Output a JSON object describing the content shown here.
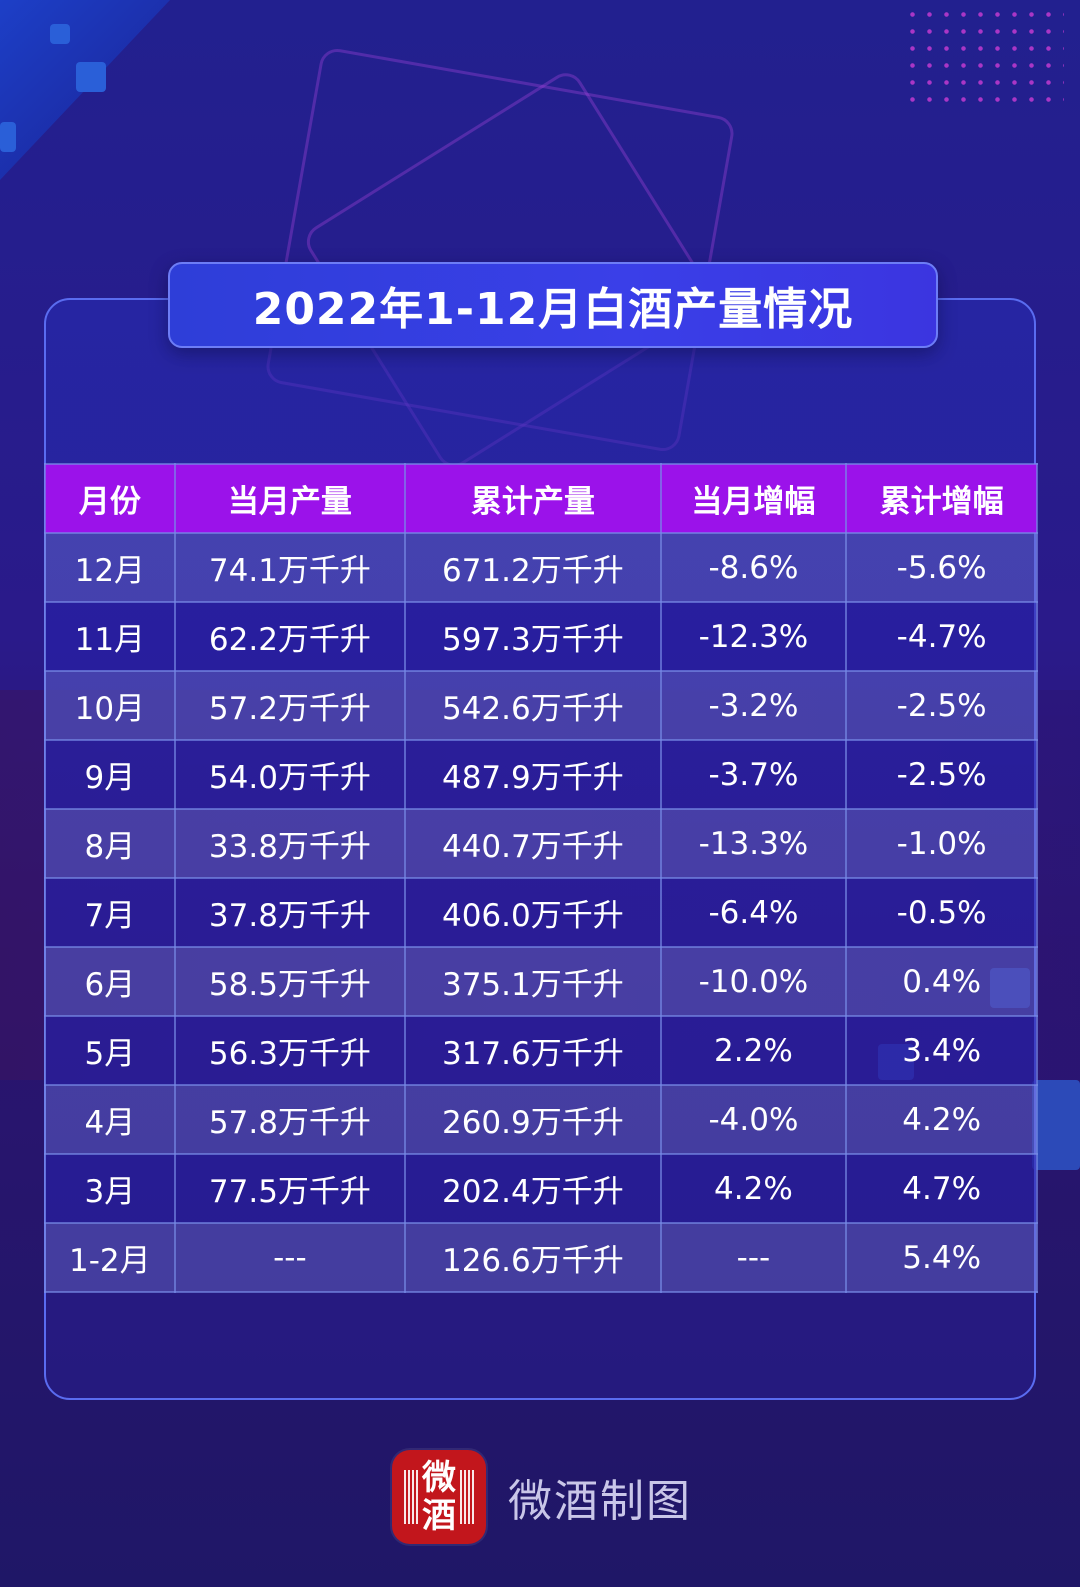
{
  "title": "2022年1-12月白酒产量情况",
  "table": {
    "headers": [
      "月份",
      "当月产量",
      "累计产量",
      "当月增幅",
      "累计增幅"
    ],
    "rows": [
      {
        "month": "12月",
        "monthly": "74.1万千升",
        "cumulative": "671.2万千升",
        "monthly_growth": "-8.6%",
        "cumulative_growth": "-5.6%"
      },
      {
        "month": "11月",
        "monthly": "62.2万千升",
        "cumulative": "597.3万千升",
        "monthly_growth": "-12.3%",
        "cumulative_growth": "-4.7%"
      },
      {
        "month": "10月",
        "monthly": "57.2万千升",
        "cumulative": "542.6万千升",
        "monthly_growth": "-3.2%",
        "cumulative_growth": "-2.5%"
      },
      {
        "month": "9月",
        "monthly": "54.0万千升",
        "cumulative": "487.9万千升",
        "monthly_growth": "-3.7%",
        "cumulative_growth": "-2.5%"
      },
      {
        "month": "8月",
        "monthly": "33.8万千升",
        "cumulative": "440.7万千升",
        "monthly_growth": "-13.3%",
        "cumulative_growth": "-1.0%"
      },
      {
        "month": "7月",
        "monthly": "37.8万千升",
        "cumulative": "406.0万千升",
        "monthly_growth": "-6.4%",
        "cumulative_growth": "-0.5%"
      },
      {
        "month": "6月",
        "monthly": "58.5万千升",
        "cumulative": "375.1万千升",
        "monthly_growth": "-10.0%",
        "cumulative_growth": "0.4%"
      },
      {
        "month": "5月",
        "monthly": "56.3万千升",
        "cumulative": "317.6万千升",
        "monthly_growth": "2.2%",
        "cumulative_growth": "3.4%"
      },
      {
        "month": "4月",
        "monthly": "57.8万千升",
        "cumulative": "260.9万千升",
        "monthly_growth": "-4.0%",
        "cumulative_growth": "4.2%"
      },
      {
        "month": "3月",
        "monthly": "77.5万千升",
        "cumulative": "202.4万千升",
        "monthly_growth": "4.2%",
        "cumulative_growth": "4.7%"
      },
      {
        "month": "1-2月",
        "monthly": "---",
        "cumulative": "126.6万千升",
        "monthly_growth": "---",
        "cumulative_growth": "5.4%"
      }
    ]
  },
  "footer": {
    "logo_text_top": "微",
    "logo_text_bottom": "酒",
    "label": "微酒制图"
  },
  "colors": {
    "background": "#22208f",
    "header_row": "#9b12ea",
    "title_box": "#3a3fe8",
    "logo": "#c2161c"
  }
}
